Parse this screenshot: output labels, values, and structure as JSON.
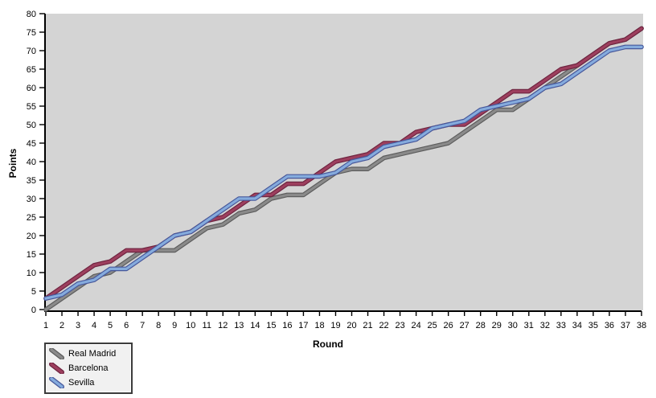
{
  "chart": {
    "y_axis_title": "Points",
    "x_axis_title": "Round",
    "plot_bg": "#d4d4d4",
    "axis_color": "#000000",
    "tick_label_color": "#000000",
    "y_ticks": [
      0,
      5,
      10,
      15,
      20,
      25,
      30,
      35,
      40,
      45,
      50,
      55,
      60,
      65,
      70,
      75,
      80
    ],
    "x_ticks": [
      1,
      2,
      3,
      4,
      5,
      6,
      7,
      8,
      9,
      10,
      11,
      12,
      13,
      14,
      15,
      16,
      17,
      18,
      19,
      20,
      21,
      22,
      23,
      24,
      25,
      26,
      27,
      28,
      29,
      30,
      31,
      32,
      33,
      34,
      35,
      36,
      37,
      38
    ]
  },
  "chart_data": {
    "type": "line",
    "title": "",
    "xlabel": "Round",
    "ylabel": "Points",
    "xlim": [
      1,
      38
    ],
    "ylim": [
      0,
      80
    ],
    "grid": false,
    "legend_position": "bottom-left",
    "x": [
      1,
      2,
      3,
      4,
      5,
      6,
      7,
      8,
      9,
      10,
      11,
      12,
      13,
      14,
      15,
      16,
      17,
      18,
      19,
      20,
      21,
      22,
      23,
      24,
      25,
      26,
      27,
      28,
      29,
      30,
      31,
      32,
      33,
      34,
      35,
      36,
      37,
      38
    ],
    "series": [
      {
        "name": "Real Madrid",
        "color": "#8a8a8a",
        "edge_color": "#5d5d5d",
        "values": [
          0,
          3,
          6,
          9,
          10,
          13,
          16,
          16,
          16,
          19,
          22,
          23,
          26,
          27,
          30,
          31,
          31,
          34,
          37,
          38,
          38,
          41,
          42,
          43,
          44,
          45,
          48,
          51,
          54,
          54,
          57,
          60,
          63,
          66,
          69,
          72,
          73,
          76
        ]
      },
      {
        "name": "Barcelona",
        "color": "#9d3f5e",
        "edge_color": "#6f2440",
        "values": [
          3,
          6,
          9,
          12,
          13,
          16,
          16,
          17,
          20,
          21,
          24,
          25,
          28,
          31,
          31,
          34,
          34,
          37,
          40,
          41,
          42,
          45,
          45,
          48,
          49,
          50,
          50,
          53,
          56,
          59,
          59,
          62,
          65,
          66,
          69,
          72,
          73,
          76
        ]
      },
      {
        "name": "Sevilla",
        "color": "#85abdd",
        "edge_color": "#47589b",
        "values": [
          3,
          4,
          7,
          8,
          11,
          11,
          14,
          17,
          20,
          21,
          24,
          27,
          30,
          30,
          33,
          36,
          36,
          36,
          37,
          40,
          41,
          44,
          45,
          46,
          49,
          50,
          51,
          54,
          55,
          56,
          57,
          60,
          61,
          64,
          67,
          70,
          71,
          71
        ]
      }
    ]
  },
  "legend": {
    "items": [
      {
        "label": "Real Madrid",
        "color": "#8a8a8a",
        "edge_color": "#5d5d5d"
      },
      {
        "label": "Barcelona",
        "color": "#9d3f5e",
        "edge_color": "#6f2440"
      },
      {
        "label": "Sevilla",
        "color": "#85abdd",
        "edge_color": "#47589b"
      }
    ]
  }
}
